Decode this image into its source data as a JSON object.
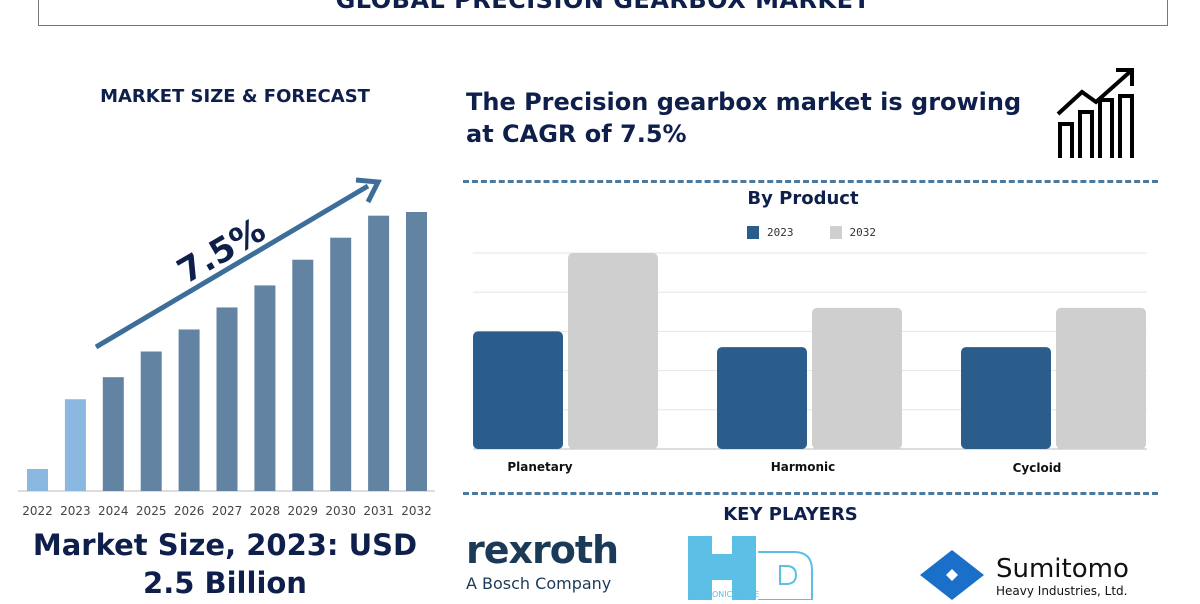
{
  "header": {
    "title": "GLOBAL PRECISION GEARBOX MARKET"
  },
  "left": {
    "heading": "MARKET SIZE & FORECAST",
    "cagr_label": "7.5%",
    "market_size": "Market Size, 2023: USD 2.5 Billion"
  },
  "right": {
    "headline": "The Precision gearbox market is growing at CAGR of 7.5%",
    "icon": "growth-chart-icon",
    "key_players_title": "KEY PLAYERS",
    "players": [
      {
        "name": "rexroth",
        "sub": "A Bosch Company"
      },
      {
        "name": "HD",
        "sub": "HARMONIC DRIVE"
      },
      {
        "name": "Sumitomo",
        "sub": "Heavy Industries, Ltd."
      }
    ]
  },
  "colors": {
    "navy": "#0d1f4a",
    "bar_hist": "#8ab8e0",
    "bar_fore": "#6383a3",
    "s2023": "#2a5d8c",
    "s2032": "#cfcfcf",
    "arrow": "#3d6e99"
  },
  "chart_data": [
    {
      "type": "bar",
      "title": "",
      "categories": [
        "2022",
        "2023",
        "2024",
        "2025",
        "2026",
        "2027",
        "2028",
        "2029",
        "2030",
        "2031",
        "2032"
      ],
      "values": [
        0.6,
        2.5,
        3.1,
        3.8,
        4.4,
        5.0,
        5.6,
        6.3,
        6.9,
        7.5,
        7.6
      ],
      "ylabel": "",
      "grid": false,
      "annotation": "7.5%"
    },
    {
      "type": "bar",
      "title": "By Product",
      "categories": [
        "Planetary",
        "Harmonic",
        "Cycloid"
      ],
      "series": [
        {
          "name": "2023",
          "values": [
            3.0,
            2.6,
            2.6
          ]
        },
        {
          "name": "2032",
          "values": [
            5.0,
            3.6,
            3.6
          ]
        }
      ],
      "ylim": [
        0,
        5
      ],
      "grid": true,
      "legend": "top"
    }
  ]
}
